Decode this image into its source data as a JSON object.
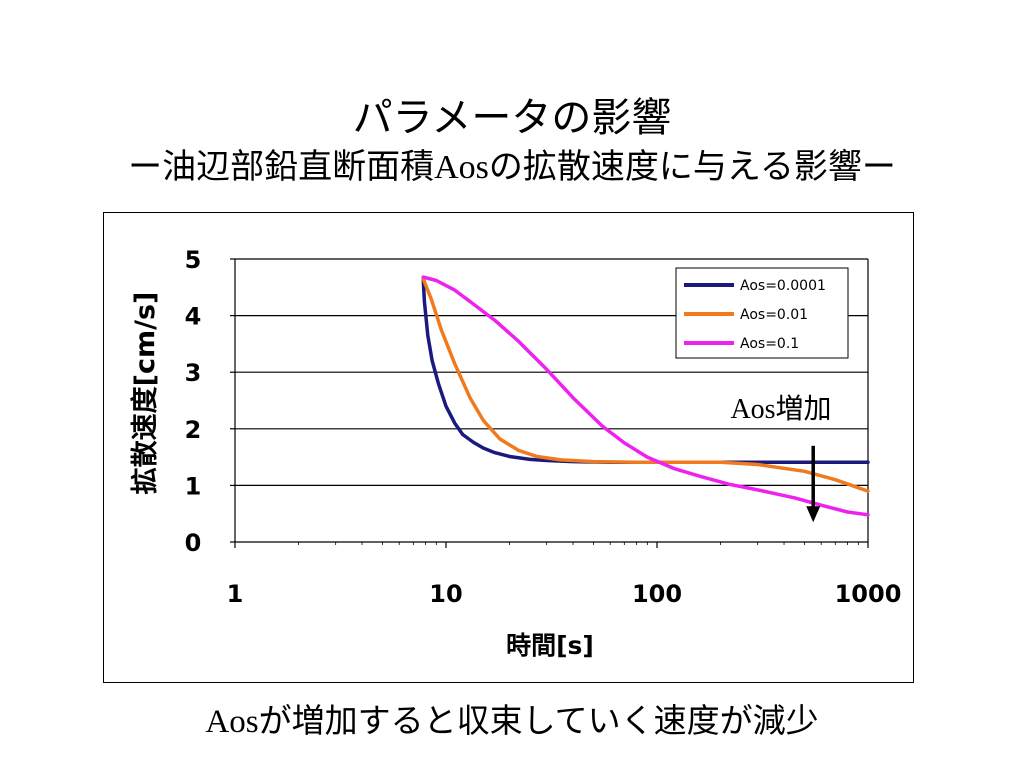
{
  "slide": {
    "title": "パラメータの影響",
    "subtitle_prefix": "ー油辺部鉛直断面積",
    "subtitle_latin": "Aos",
    "subtitle_suffix": "の拡散速度に与える影響ー",
    "caption_latin": "Aos",
    "caption_text": "が増加すると収束していく速度が減少"
  },
  "chart_data": {
    "type": "line",
    "title": "",
    "xlabel": "時間[s]",
    "ylabel": "拡散速度[cm/s]",
    "xscale": "log",
    "xlim": [
      1,
      1000
    ],
    "ylim": [
      0,
      5
    ],
    "x_ticks": [
      "1",
      "10",
      "100",
      "1000"
    ],
    "y_ticks": [
      "0",
      "1",
      "2",
      "3",
      "4",
      "5"
    ],
    "grid": "horizontal",
    "legend_position": "top-right",
    "annotation": {
      "text": "Aos増加",
      "arrow": "down",
      "x": 550,
      "y_from": 1.7,
      "y_to": 0.35
    },
    "series": [
      {
        "name": "Aos=0.0001",
        "color": "#1a1a7e",
        "x": [
          7.8,
          7.9,
          8.2,
          8.6,
          9.2,
          10,
          11,
          12,
          13.5,
          15,
          17,
          20,
          25,
          30,
          40,
          60,
          100,
          200,
          500,
          1000
        ],
        "y": [
          4.65,
          4.25,
          3.65,
          3.2,
          2.8,
          2.4,
          2.1,
          1.9,
          1.76,
          1.66,
          1.58,
          1.51,
          1.46,
          1.44,
          1.42,
          1.41,
          1.41,
          1.41,
          1.41,
          1.41
        ]
      },
      {
        "name": "Aos=0.01",
        "color": "#f07a1e",
        "x": [
          7.8,
          8.5,
          9.5,
          11,
          13,
          15,
          18,
          22,
          27,
          35,
          50,
          80,
          120,
          200,
          300,
          500,
          700,
          1000
        ],
        "y": [
          4.65,
          4.3,
          3.75,
          3.15,
          2.55,
          2.15,
          1.82,
          1.62,
          1.51,
          1.45,
          1.42,
          1.41,
          1.41,
          1.41,
          1.37,
          1.25,
          1.1,
          0.9
        ]
      },
      {
        "name": "Aos=0.1",
        "color": "#ee22ee",
        "x": [
          7.8,
          9,
          11,
          13,
          17,
          22,
          30,
          40,
          55,
          70,
          90,
          120,
          160,
          220,
          300,
          450,
          600,
          800,
          1000
        ],
        "y": [
          4.68,
          4.62,
          4.45,
          4.25,
          3.92,
          3.55,
          3.05,
          2.55,
          2.05,
          1.75,
          1.5,
          1.3,
          1.16,
          1.02,
          0.92,
          0.78,
          0.65,
          0.53,
          0.48
        ]
      }
    ]
  }
}
